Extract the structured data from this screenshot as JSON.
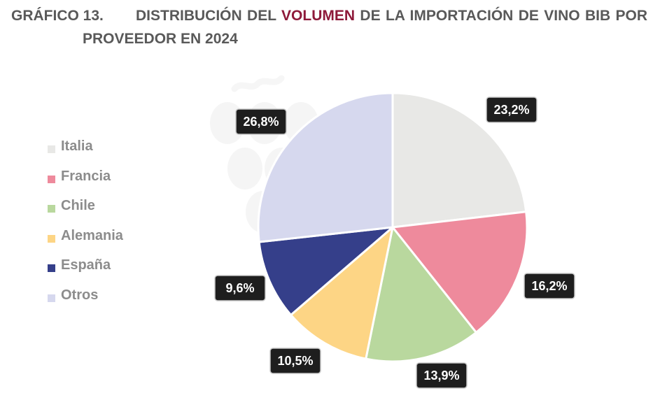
{
  "heading": {
    "number": "GRÁFICO 13.",
    "line1_pre": "DISTRIBUCIÓN DEL ",
    "line1_accent": "VOLUMEN",
    "line1_post": " DE LA IMPORTACIÓN DE VINO BIB POR",
    "line2": "PROVEEDOR EN 2024",
    "accent_color": "#8e1a3a"
  },
  "chart_data": {
    "type": "pie",
    "title": "GRÁFICO 13. DISTRIBUCIÓN DEL VOLUMEN DE LA IMPORTACIÓN DE VINO BIB POR PROVEEDOR EN 2024",
    "legend_position": "left",
    "start_angle_deg": 0,
    "direction": "clockwise",
    "slices": [
      {
        "label": "Italia",
        "value": 23.2,
        "display": "23,2%",
        "color": "#e8e8e6"
      },
      {
        "label": "Francia",
        "value": 16.2,
        "display": "16,2%",
        "color": "#ee8a9c"
      },
      {
        "label": "Chile",
        "value": 13.9,
        "display": "13,9%",
        "color": "#b9d89e"
      },
      {
        "label": "Alemania",
        "value": 10.5,
        "display": "10,5%",
        "color": "#fdd585"
      },
      {
        "label": "España",
        "value": 9.6,
        "display": "9,6%",
        "color": "#353f8a"
      },
      {
        "label": "Otros",
        "value": 26.8,
        "display": "26,8%",
        "color": "#d6d8ee"
      }
    ]
  }
}
